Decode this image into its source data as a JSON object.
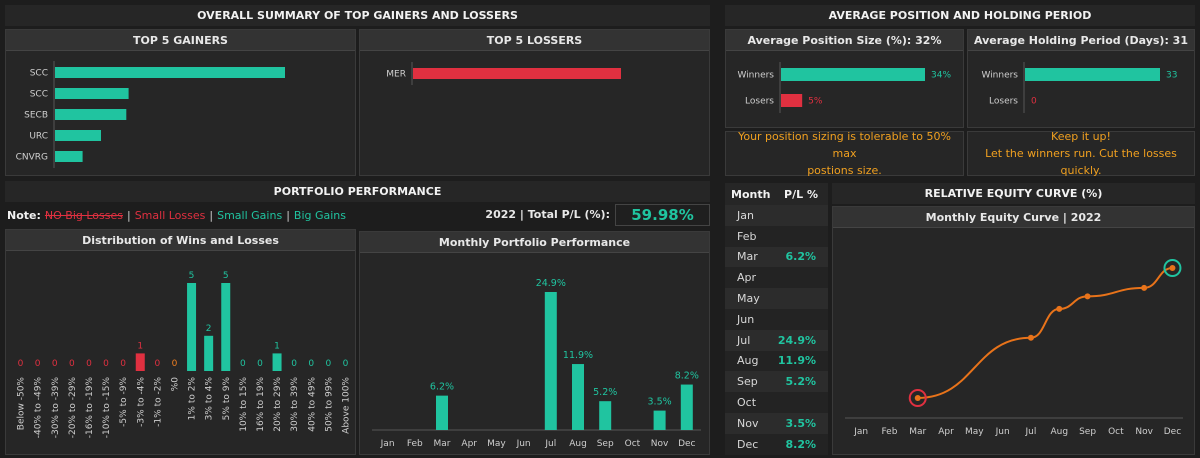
{
  "summary_title": "OVERALL SUMMARY OF TOP GAINERS AND LOSSERS",
  "avg_title": "AVERAGE POSITION AND HOLDING PERIOD",
  "portfolio_title": "PORTFOLIO PERFORMANCE",
  "equity_title": "RELATIVE EQUITY CURVE (%)",
  "note": {
    "label": "Note:",
    "no_big_losses": "NO Big Losses",
    "sep": "|",
    "small_losses": "Small Losses",
    "small_gains": "Small Gains",
    "big_gains": "Big Gains"
  },
  "total": {
    "label": "2022 | Total P/L (%):",
    "value": "59.98%"
  },
  "colors": {
    "gain": "#20c4a0",
    "loss": "#e03040",
    "neutral": "#f07f20",
    "curve": "#e8731a"
  },
  "chart_data": [
    {
      "id": "gainers",
      "type": "bar",
      "orientation": "horizontal",
      "title": "TOP 5 GAINERS",
      "categories": [
        "SCC",
        "SCC",
        "SECB",
        "URC",
        "CNVRG"
      ],
      "values": [
        100,
        32,
        31,
        20,
        12
      ]
    },
    {
      "id": "losers",
      "type": "bar",
      "orientation": "horizontal",
      "title": "TOP 5 LOSSERS",
      "categories": [
        "MER"
      ],
      "values": [
        100
      ]
    },
    {
      "id": "position",
      "type": "bar",
      "orientation": "horizontal",
      "title": "Average Position Size (%): 32%",
      "categories": [
        "Winners",
        "Losers"
      ],
      "values": [
        34,
        5
      ],
      "labels": [
        "34%",
        "5%"
      ]
    },
    {
      "id": "holding",
      "type": "bar",
      "orientation": "horizontal",
      "title": "Average Holding Period (Days): 31",
      "categories": [
        "Winners",
        "Losers"
      ],
      "values": [
        33,
        0
      ],
      "labels": [
        "33",
        "0"
      ]
    },
    {
      "id": "distribution",
      "type": "bar",
      "title": "Distribution of Wins and Losses",
      "categories": [
        "Below -50%",
        "-40% to -49%",
        "-30% to -39%",
        "-20% to -29%",
        "-16% to -19%",
        "-10% to -15%",
        "-5% to -9%",
        "-3% to -4%",
        "-1% to -2%",
        "%0",
        "1% to 2%",
        "3% to 4%",
        "5% to 9%",
        "10% to 15%",
        "16% to 19%",
        "20% to 29%",
        "30% to 39%",
        "40% to 49%",
        "50% to 99%",
        "Above 100%"
      ],
      "values": [
        0,
        0,
        0,
        0,
        0,
        0,
        0,
        1,
        0,
        0,
        5,
        2,
        5,
        0,
        0,
        1,
        0,
        0,
        0,
        0
      ],
      "ylim": [
        0,
        5.5
      ]
    },
    {
      "id": "monthly",
      "type": "bar",
      "title": "Monthly Portfolio Performance",
      "categories": [
        "Jan",
        "Feb",
        "Mar",
        "Apr",
        "May",
        "Jun",
        "Jul",
        "Aug",
        "Sep",
        "Oct",
        "Nov",
        "Dec"
      ],
      "values": [
        null,
        null,
        6.2,
        null,
        null,
        null,
        24.9,
        11.9,
        5.2,
        null,
        3.5,
        8.2
      ],
      "labels": [
        "",
        "",
        "6.2%",
        "",
        "",
        "",
        "24.9%",
        "11.9%",
        "5.2%",
        "",
        "3.5%",
        "8.2%"
      ],
      "ylim": [
        0,
        28
      ]
    },
    {
      "id": "monthly_table",
      "type": "table",
      "columns": [
        "Month",
        "P/L %"
      ],
      "rows": [
        [
          "Jan",
          ""
        ],
        [
          "Feb",
          ""
        ],
        [
          "Mar",
          "6.2%"
        ],
        [
          "Apr",
          ""
        ],
        [
          "May",
          ""
        ],
        [
          "Jun",
          ""
        ],
        [
          "Jul",
          "24.9%"
        ],
        [
          "Aug",
          "11.9%"
        ],
        [
          "Sep",
          "5.2%"
        ],
        [
          "Oct",
          ""
        ],
        [
          "Nov",
          "3.5%"
        ],
        [
          "Dec",
          "8.2%"
        ]
      ]
    },
    {
      "id": "equity",
      "type": "line",
      "title": "Monthly Equity Curve | 2022",
      "x": [
        "Jan",
        "Feb",
        "Mar",
        "Apr",
        "May",
        "Jun",
        "Jul",
        "Aug",
        "Sep",
        "Oct",
        "Nov",
        "Dec"
      ],
      "y": [
        null,
        null,
        6.2,
        null,
        null,
        null,
        31.1,
        43.0,
        48.2,
        null,
        51.7,
        59.9
      ],
      "ylim": [
        0,
        65
      ]
    }
  ],
  "messages": {
    "position": [
      "Your position sizing is tolerable to 50% max",
      "postions size."
    ],
    "holding": [
      "Keep it up!",
      "Let the winners run. Cut the losses quickly."
    ]
  }
}
